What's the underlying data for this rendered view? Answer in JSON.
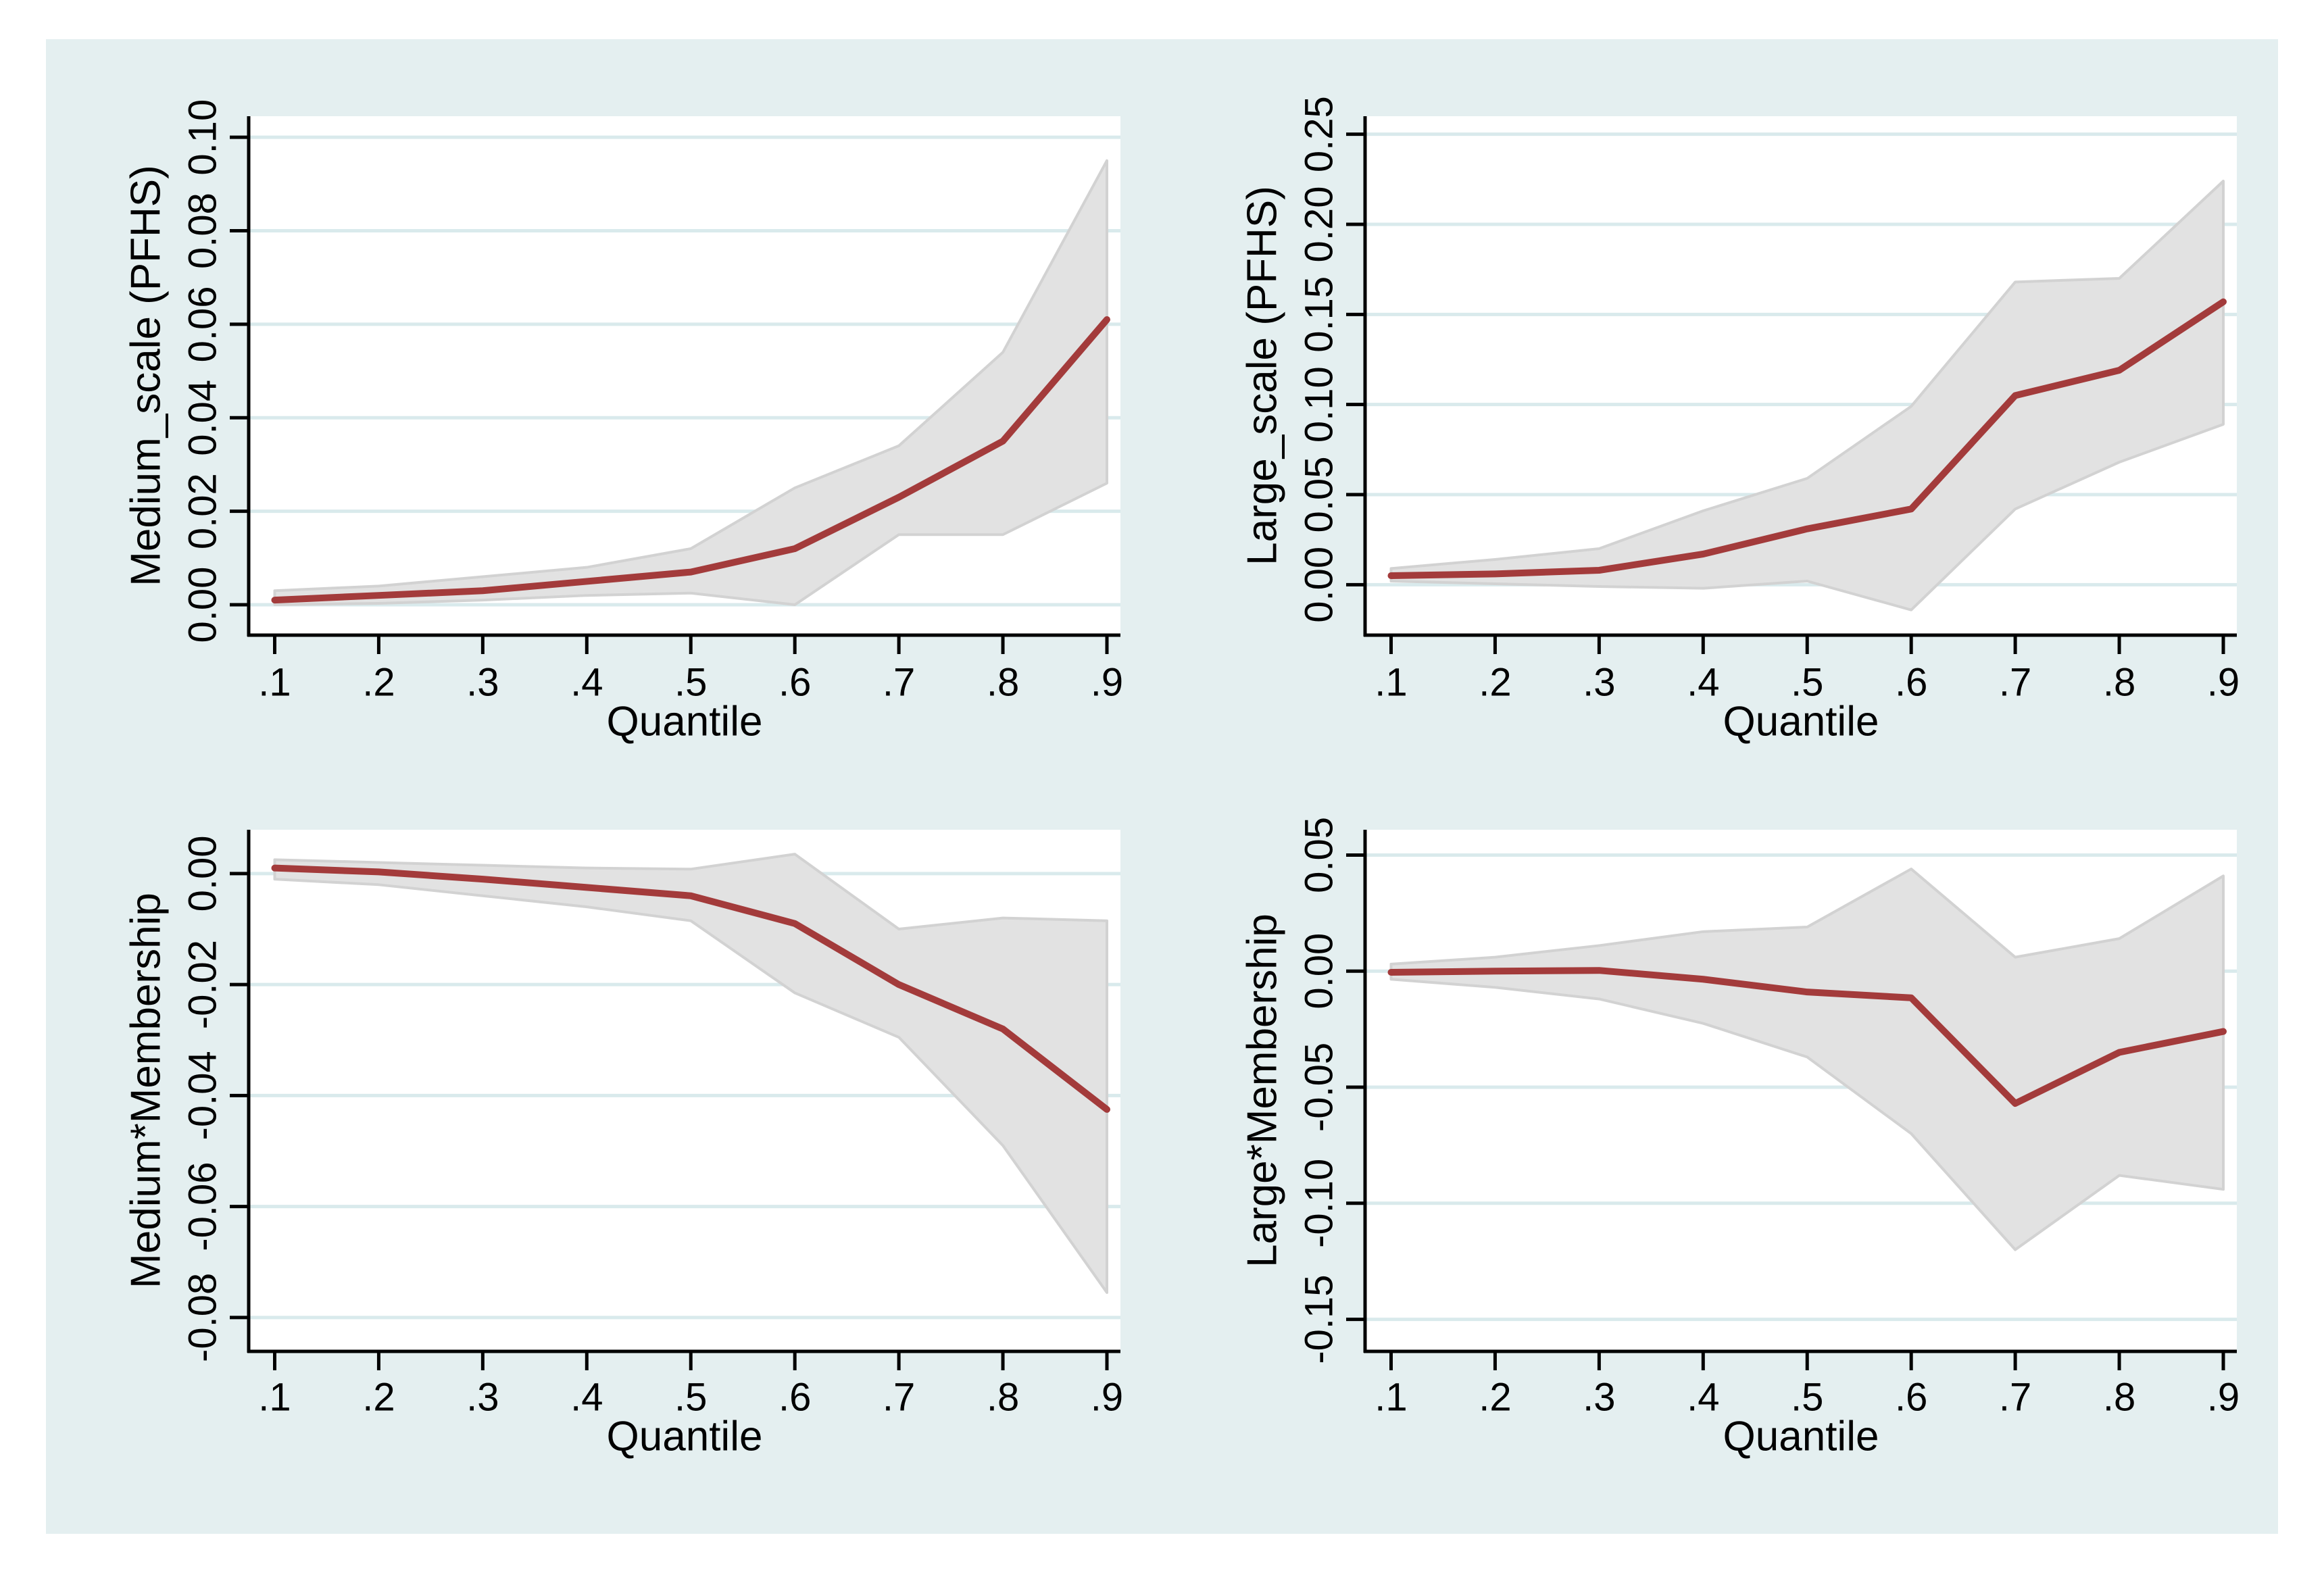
{
  "figure": {
    "background_color": "#e4eff0",
    "plot_background_color": "#ffffff",
    "grid_color": "#d9eaec",
    "band_fill_color": "#e2e2e2",
    "band_edge_color": "#d2d2d2",
    "line_color": "#a33b3b",
    "axis_color": "#000000",
    "text_color": "#000000"
  },
  "chart_data": [
    {
      "type": "line",
      "panel": "top-left",
      "title": "",
      "ylabel": "Medium_scale (PFHS)",
      "xlabel": "Quantile",
      "x": [
        0.1,
        0.2,
        0.3,
        0.4,
        0.5,
        0.6,
        0.7,
        0.8,
        0.9
      ],
      "x_tick_labels": [
        ".1",
        ".2",
        ".3",
        ".4",
        ".5",
        ".6",
        ".7",
        ".8",
        ".9"
      ],
      "xlim": [
        0.075,
        0.913
      ],
      "ylim": [
        -0.0065,
        0.1045
      ],
      "y_ticks": [
        0.0,
        0.02,
        0.04,
        0.06,
        0.08,
        0.1
      ],
      "y_tick_labels": [
        "0.00",
        "0.02",
        "0.04",
        "0.06",
        "0.08",
        "0.10"
      ],
      "grid": true,
      "legend": "none",
      "series": [
        {
          "name": "quantile-coefficient",
          "values": [
            0.001,
            0.002,
            0.003,
            0.005,
            0.007,
            0.012,
            0.023,
            0.035,
            0.061
          ]
        }
      ],
      "band": {
        "name": "confidence-interval",
        "lower": [
          0.0,
          0.0003,
          0.001,
          0.002,
          0.0025,
          0.0,
          0.015,
          0.015,
          0.026
        ],
        "upper": [
          0.003,
          0.004,
          0.006,
          0.008,
          0.012,
          0.025,
          0.034,
          0.054,
          0.095
        ]
      }
    },
    {
      "type": "line",
      "panel": "top-right",
      "title": "",
      "ylabel": "Large_scale (PFHS)",
      "xlabel": "Quantile",
      "x": [
        0.1,
        0.2,
        0.3,
        0.4,
        0.5,
        0.6,
        0.7,
        0.8,
        0.9
      ],
      "x_tick_labels": [
        ".1",
        ".2",
        ".3",
        ".4",
        ".5",
        ".6",
        ".7",
        ".8",
        ".9"
      ],
      "xlim": [
        0.075,
        0.913
      ],
      "ylim": [
        -0.028,
        0.26
      ],
      "y_ticks": [
        0.0,
        0.05,
        0.1,
        0.15,
        0.2,
        0.25
      ],
      "y_tick_labels": [
        "0.00",
        "0.05",
        "0.10",
        "0.15",
        "0.20",
        "0.25"
      ],
      "grid": true,
      "legend": "none",
      "series": [
        {
          "name": "quantile-coefficient",
          "values": [
            0.005,
            0.006,
            0.008,
            0.017,
            0.031,
            0.042,
            0.105,
            0.119,
            0.157
          ]
        }
      ],
      "band": {
        "name": "confidence-interval",
        "lower": [
          0.002,
          0.0005,
          -0.001,
          -0.002,
          0.002,
          -0.014,
          0.042,
          0.068,
          0.089
        ],
        "upper": [
          0.009,
          0.014,
          0.02,
          0.041,
          0.059,
          0.099,
          0.168,
          0.17,
          0.224
        ]
      }
    },
    {
      "type": "line",
      "panel": "bottom-left",
      "title": "",
      "ylabel": "Medium*Membership",
      "xlabel": "Quantile",
      "x": [
        0.1,
        0.2,
        0.3,
        0.4,
        0.5,
        0.6,
        0.7,
        0.8,
        0.9
      ],
      "x_tick_labels": [
        ".1",
        ".2",
        ".3",
        ".4",
        ".5",
        ".6",
        ".7",
        ".8",
        ".9"
      ],
      "xlim": [
        0.075,
        0.913
      ],
      "ylim": [
        -0.0861,
        0.0079
      ],
      "y_ticks": [
        0.0,
        -0.02,
        -0.04,
        -0.06,
        -0.08
      ],
      "y_tick_labels": [
        "0.00",
        "-0.02",
        "-0.04",
        "-0.06",
        "-0.08"
      ],
      "grid": true,
      "legend": "none",
      "series": [
        {
          "name": "quantile-coefficient",
          "values": [
            0.001,
            0.0003,
            -0.001,
            -0.0025,
            -0.004,
            -0.009,
            -0.02,
            -0.028,
            -0.0425
          ]
        }
      ],
      "band": {
        "name": "confidence-interval",
        "lower": [
          -0.001,
          -0.002,
          -0.004,
          -0.006,
          -0.0085,
          -0.0215,
          -0.0295,
          -0.049,
          -0.0755
        ],
        "upper": [
          0.0025,
          0.002,
          0.0015,
          0.001,
          0.0008,
          0.0035,
          -0.01,
          -0.008,
          -0.0085
        ]
      }
    },
    {
      "type": "line",
      "panel": "bottom-right",
      "title": "",
      "ylabel": "Large*Membership",
      "xlabel": "Quantile",
      "x": [
        0.1,
        0.2,
        0.3,
        0.4,
        0.5,
        0.6,
        0.7,
        0.8,
        0.9
      ],
      "x_tick_labels": [
        ".1",
        ".2",
        ".3",
        ".4",
        ".5",
        ".6",
        ".7",
        ".8",
        ".9"
      ],
      "xlim": [
        0.075,
        0.913
      ],
      "ylim": [
        -0.1638,
        0.0609
      ],
      "y_ticks": [
        0.05,
        0.0,
        -0.05,
        -0.1,
        -0.15
      ],
      "y_tick_labels": [
        "0.05",
        "0.00",
        "-0.05",
        "-0.10",
        "-0.15"
      ],
      "grid": true,
      "legend": "none",
      "series": [
        {
          "name": "quantile-coefficient",
          "values": [
            -0.0005,
            0.0,
            0.0003,
            -0.0035,
            -0.009,
            -0.0115,
            -0.057,
            -0.035,
            -0.026
          ]
        }
      ],
      "band": {
        "name": "confidence-interval",
        "lower": [
          -0.0035,
          -0.007,
          -0.012,
          -0.0225,
          -0.037,
          -0.07,
          -0.12,
          -0.088,
          -0.094
        ],
        "upper": [
          0.003,
          0.006,
          0.011,
          0.017,
          0.019,
          0.044,
          0.006,
          0.014,
          0.041
        ]
      }
    }
  ]
}
